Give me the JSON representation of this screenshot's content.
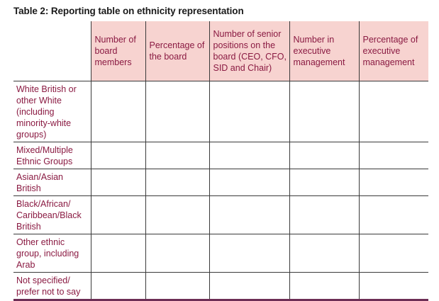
{
  "title": "Table 2: Reporting table on ethnicity representation",
  "columns": [
    "Number of board members",
    "Percentage of the board",
    "Number of senior positions on the board (CEO, CFO, SID and Chair)",
    "Number in executive management",
    "Percentage of executive management"
  ],
  "rows": [
    "White British or other White (including minority-white groups)",
    "Mixed/Multiple Ethnic Groups",
    "Asian/Asian British",
    "Black/African/ Caribbean/Black British",
    "Other ethnic group, including Arab",
    "Not specified/ prefer not to say"
  ],
  "colors": {
    "header_fill": "#f7d3d0",
    "text_accent": "#8a1a42",
    "bottom_rule": "#6d2d55"
  }
}
